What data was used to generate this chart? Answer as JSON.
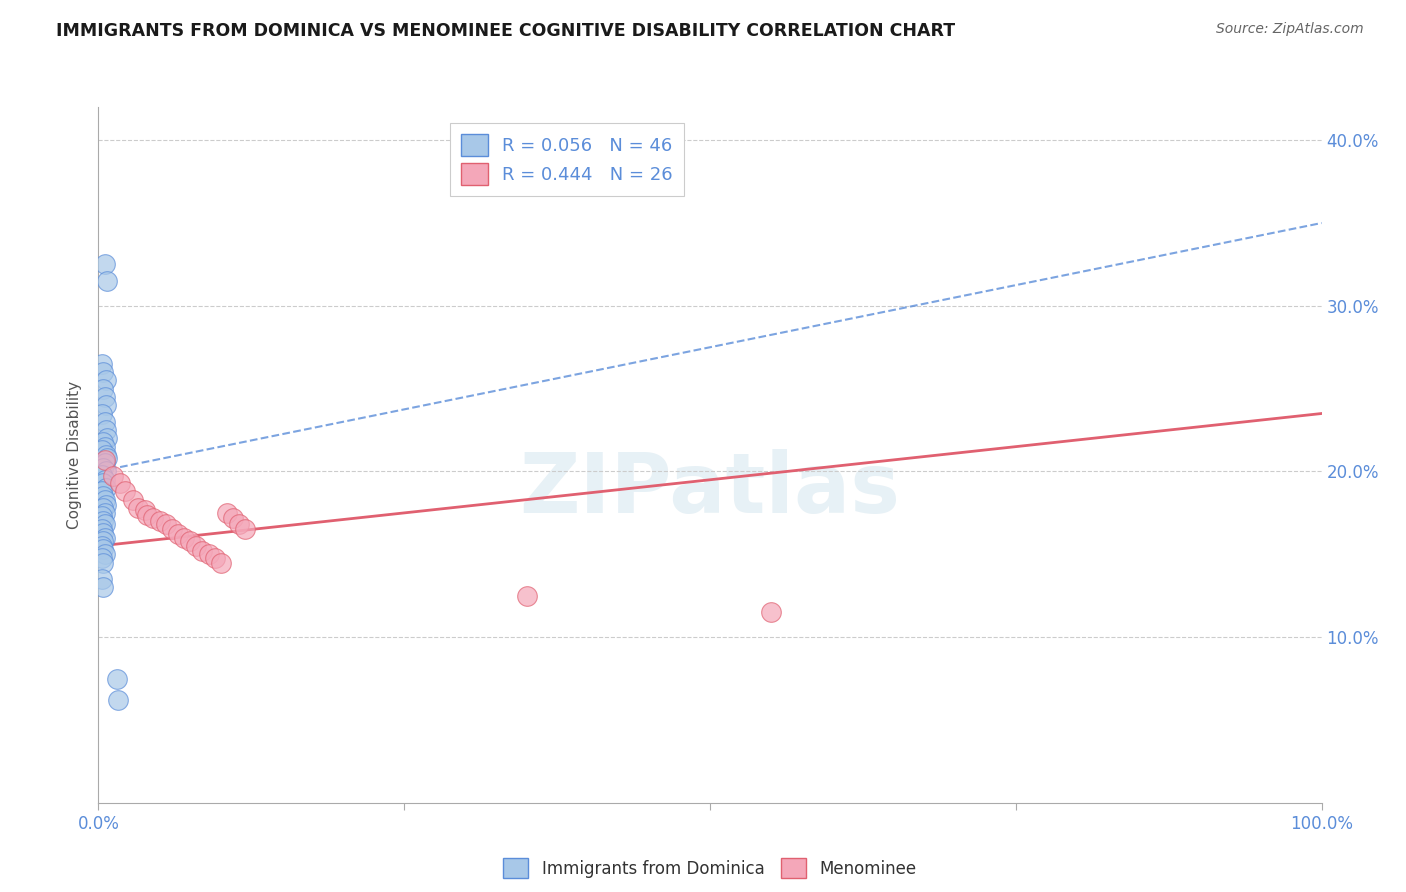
{
  "title": "IMMIGRANTS FROM DOMINICA VS MENOMINEE COGNITIVE DISABILITY CORRELATION CHART",
  "source": "Source: ZipAtlas.com",
  "xlabel": "",
  "ylabel": "Cognitive Disability",
  "xlim": [
    0,
    1.0
  ],
  "ylim": [
    0.0,
    0.42
  ],
  "xticks": [
    0.0,
    0.25,
    0.5,
    0.75,
    1.0
  ],
  "xtick_labels": [
    "0.0%",
    "",
    "",
    "",
    "100.0%"
  ],
  "ytick_labels_right": [
    "10.0%",
    "20.0%",
    "30.0%",
    "40.0%"
  ],
  "ytick_vals_right": [
    0.1,
    0.2,
    0.3,
    0.4
  ],
  "blue_R": "0.056",
  "blue_N": "46",
  "pink_R": "0.444",
  "pink_N": "26",
  "blue_color": "#A8C8E8",
  "pink_color": "#F4A7B9",
  "blue_line_color": "#5B8DD9",
  "pink_line_color": "#E06070",
  "legend_label_blue": "Immigrants from Dominica",
  "legend_label_pink": "Menominee",
  "watermark": "ZIPatlas",
  "blue_scatter_x": [
    0.005,
    0.007,
    0.003,
    0.004,
    0.006,
    0.004,
    0.005,
    0.006,
    0.003,
    0.005,
    0.006,
    0.007,
    0.004,
    0.005,
    0.003,
    0.006,
    0.007,
    0.005,
    0.004,
    0.006,
    0.003,
    0.005,
    0.004,
    0.006,
    0.003,
    0.004,
    0.005,
    0.006,
    0.004,
    0.005,
    0.003,
    0.004,
    0.005,
    0.003,
    0.004,
    0.005,
    0.004,
    0.003,
    0.004,
    0.005,
    0.003,
    0.004,
    0.003,
    0.004,
    0.015,
    0.016
  ],
  "blue_scatter_y": [
    0.325,
    0.315,
    0.265,
    0.26,
    0.255,
    0.25,
    0.245,
    0.24,
    0.235,
    0.23,
    0.225,
    0.22,
    0.218,
    0.215,
    0.213,
    0.21,
    0.208,
    0.205,
    0.202,
    0.2,
    0.198,
    0.195,
    0.193,
    0.19,
    0.188,
    0.185,
    0.183,
    0.18,
    0.178,
    0.175,
    0.173,
    0.17,
    0.168,
    0.165,
    0.163,
    0.16,
    0.158,
    0.155,
    0.153,
    0.15,
    0.148,
    0.145,
    0.135,
    0.13,
    0.075,
    0.062
  ],
  "pink_scatter_x": [
    0.005,
    0.012,
    0.018,
    0.022,
    0.028,
    0.032,
    0.038,
    0.04,
    0.045,
    0.05,
    0.055,
    0.06,
    0.065,
    0.07,
    0.075,
    0.08,
    0.085,
    0.09,
    0.095,
    0.1,
    0.105,
    0.11,
    0.115,
    0.12,
    0.35,
    0.55
  ],
  "pink_scatter_y": [
    0.207,
    0.197,
    0.193,
    0.188,
    0.183,
    0.178,
    0.177,
    0.174,
    0.172,
    0.17,
    0.168,
    0.165,
    0.162,
    0.16,
    0.158,
    0.155,
    0.152,
    0.15,
    0.148,
    0.145,
    0.175,
    0.172,
    0.168,
    0.165,
    0.125,
    0.115
  ],
  "blue_trendline_x": [
    0.0,
    1.0
  ],
  "blue_trendline_y": [
    0.2,
    0.35
  ],
  "pink_trendline_x": [
    0.0,
    1.0
  ],
  "pink_trendline_y": [
    0.155,
    0.235
  ],
  "background_color": "#FFFFFF",
  "grid_color": "#CCCCCC"
}
